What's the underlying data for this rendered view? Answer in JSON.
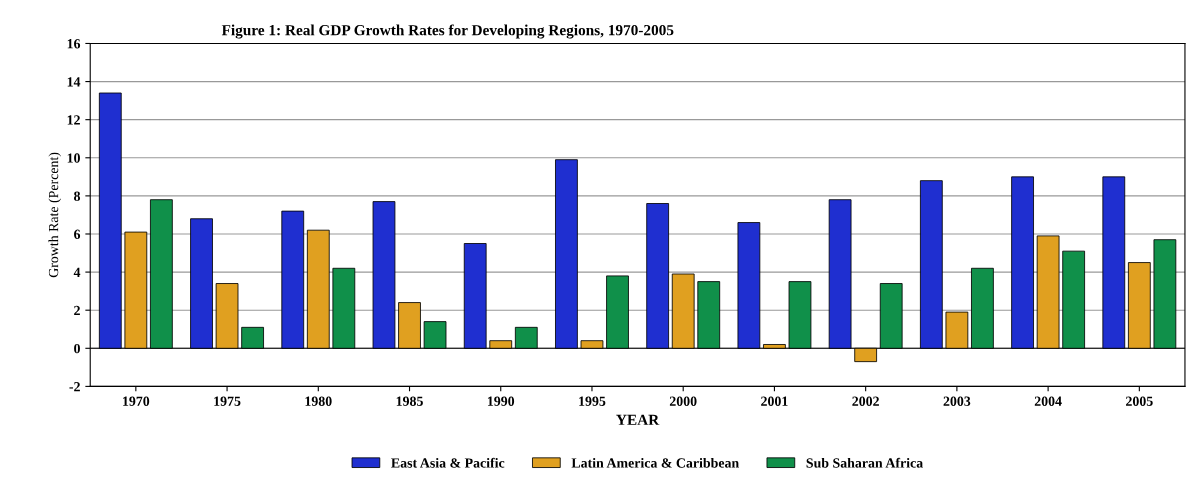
{
  "chart_data": {
    "type": "bar",
    "title": "Figure 1: Real GDP Growth Rates for Developing Regions, 1970-2005",
    "xlabel": "YEAR",
    "ylabel": "Growth Rate (Percent)",
    "categories": [
      "1970",
      "1975",
      "1980",
      "1985",
      "1990",
      "1995",
      "2000",
      "2001",
      "2002",
      "2003",
      "2004",
      "2005"
    ],
    "series": [
      {
        "name": "East Asia & Pacific",
        "color": "#1f2fd0",
        "values": [
          13.4,
          6.8,
          7.2,
          7.7,
          5.5,
          9.9,
          7.6,
          6.6,
          7.8,
          8.8,
          9.0,
          9.0
        ]
      },
      {
        "name": "Latin America & Caribbean",
        "color": "#e0a020",
        "values": [
          6.1,
          3.4,
          6.2,
          2.4,
          0.4,
          0.4,
          3.9,
          0.2,
          -0.7,
          1.9,
          5.9,
          4.5
        ]
      },
      {
        "name": "Sub Saharan Africa",
        "color": "#10904a",
        "values": [
          7.8,
          1.1,
          4.2,
          1.4,
          1.1,
          3.8,
          3.5,
          3.5,
          3.4,
          4.2,
          5.1,
          5.7
        ]
      }
    ],
    "ylim": [
      -2,
      16
    ],
    "yticks": [
      -2,
      0,
      2,
      4,
      6,
      8,
      10,
      12,
      14,
      16
    ],
    "grid": "y",
    "legend": "bottom"
  }
}
